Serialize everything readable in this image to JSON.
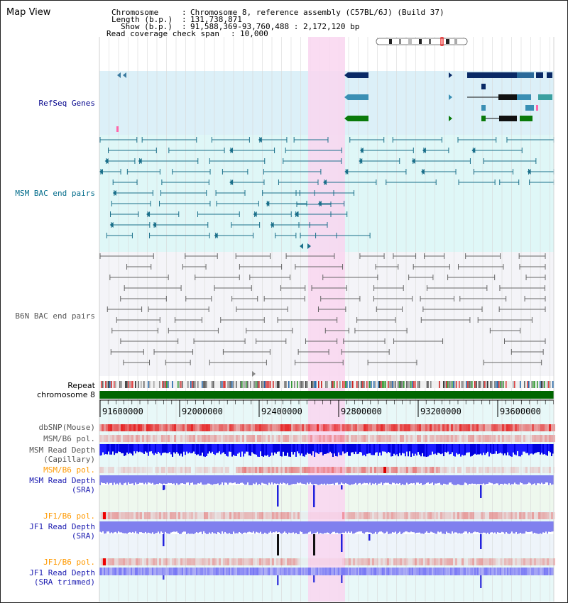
{
  "page": {
    "title": "Map View"
  },
  "header": {
    "chromosome_key": "Chromosome",
    "chromosome_value": "Chromosome 8, reference assembly (C57BL/6J) (Build 37)",
    "length_key": "Length (b.p.)",
    "length_value": "131,738,871",
    "show_key": "Show (b.p.)",
    "show_value": "91,588,369-93,760,488 : 2,172,120 bp",
    "coverage_key": "Read coverage check span",
    "coverage_value": "10,000"
  },
  "tracks": {
    "refseq": "RefSeq Genes",
    "msm_bac": "MSM BAC end pairs",
    "b6n_bac": "B6N BAC end pairs",
    "repeat": "Repeat",
    "chromosome": "chromosome 8",
    "dbsnp": "dbSNP(Mouse)",
    "msm_b6_pol": "MSM/B6 pol.",
    "msm_read_depth_cap_1": "MSM Read Depth",
    "msm_read_depth_cap_2": "(Capillary)",
    "msm_b6_pol_2": "MSM/B6 pol.",
    "msm_read_depth_sra_1": "MSM Read Depth",
    "msm_read_depth_sra_2": "(SRA)",
    "jf1_b6_pol": "JF1/B6 pol.",
    "jf1_read_depth_sra_1": "JF1 Read Depth",
    "jf1_read_depth_sra_2": "(SRA)",
    "jf1_b6_pol_2": "JF1/B6 pol.",
    "jf1_read_depth_trim_1": "JF1 Read Depth",
    "jf1_read_depth_trim_2": "(SRA trimmed)"
  },
  "axis": {
    "ticks": [
      "91600000",
      "92000000",
      "92400000",
      "92800000",
      "93200000",
      "93600000"
    ]
  },
  "colors": {
    "refseq_blue": "#0a2a66",
    "refseq_teal": "#3a8fb4",
    "refseq_green": "#0a7a0a",
    "msm_pair": "#1a6f8a",
    "b6n_pair": "#666666",
    "highlight": "#f9d6f0",
    "band_cyan": "#dff7f7",
    "chrom_green": "#006600"
  }
}
